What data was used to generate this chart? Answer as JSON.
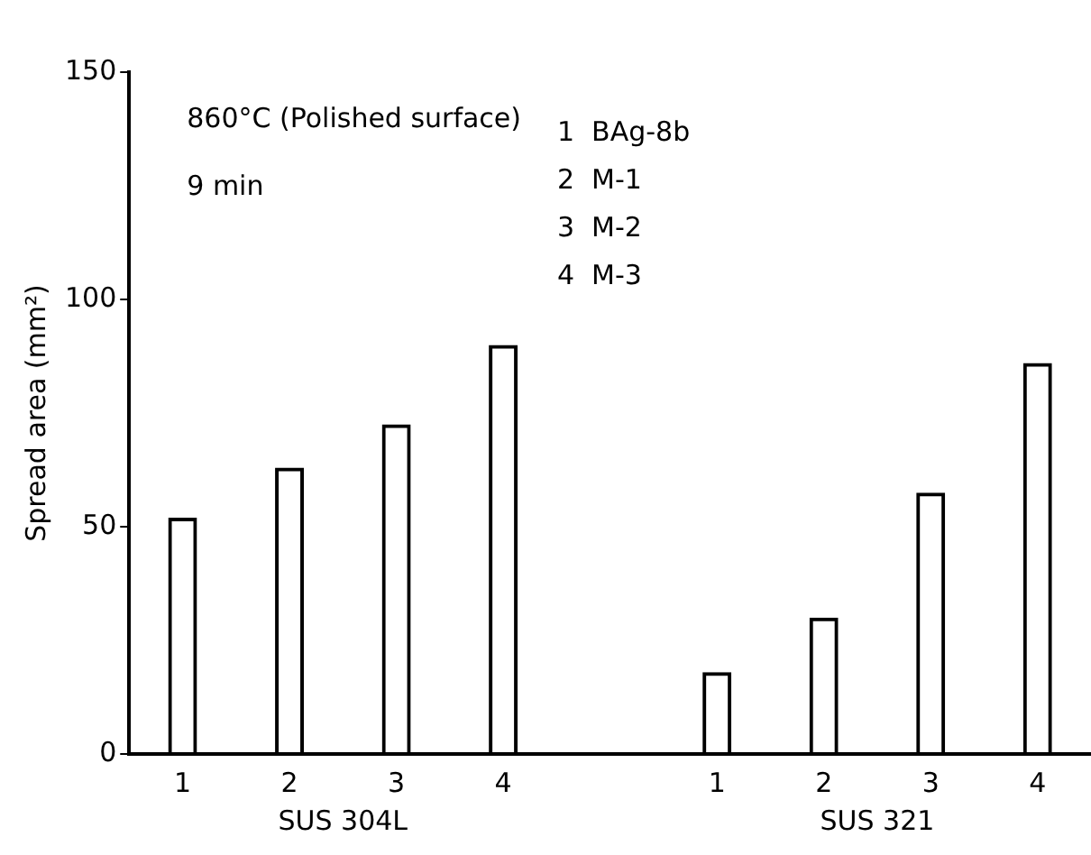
{
  "chart_data": {
    "type": "bar",
    "ylabel": "Spread area (mm²)",
    "categories": [
      "1",
      "2",
      "3",
      "4",
      null,
      "1",
      "2",
      "3",
      "4"
    ],
    "values": [
      52,
      63,
      72.5,
      90,
      null,
      18,
      30,
      57.5,
      86
    ],
    "color": "#000000",
    "ylim": [
      0,
      150
    ],
    "yticks": [
      0,
      50,
      100,
      150
    ],
    "grid": false,
    "legend": false,
    "annotations": [
      "860°C (Polished surface)",
      "9 min",
      "1  BAg-8b",
      "2  M-1",
      "3  M-2",
      "4  M-3",
      "SUS 304L",
      "SUS 321"
    ]
  }
}
